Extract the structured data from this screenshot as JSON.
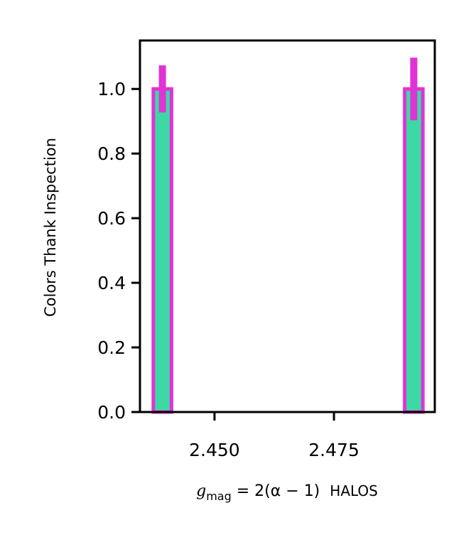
{
  "chart_data": {
    "type": "bar",
    "title": "",
    "xlabel_math": "g",
    "xlabel_sub": "mag",
    "xlabel_rest": " = 2(α − 1)",
    "xlabel_suffix": "HALOS",
    "ylabel": "Colors Thank Inspection",
    "xlim": [
      2.4344,
      2.4961
    ],
    "ylim": [
      0,
      1.15
    ],
    "xticks": [
      2.45,
      2.475
    ],
    "xtick_labels": [
      "2.450",
      "2.475"
    ],
    "yticks": [
      0,
      0.2,
      0.4,
      0.6,
      0.8,
      1.0
    ],
    "ytick_labels": [
      "0.0",
      "0.2",
      "0.4",
      "0.6",
      "0.8",
      "1.0"
    ],
    "bar_width": 0.0038,
    "x": [
      2.4391,
      2.4917
    ],
    "values": [
      1.0,
      1.0
    ],
    "errors": [
      0.073,
      0.097
    ],
    "grid": false,
    "colors": {
      "fill": "#3dd9a4",
      "edge": "#e033d6",
      "errorbar": "#e033d6",
      "axis": "#000000"
    }
  }
}
